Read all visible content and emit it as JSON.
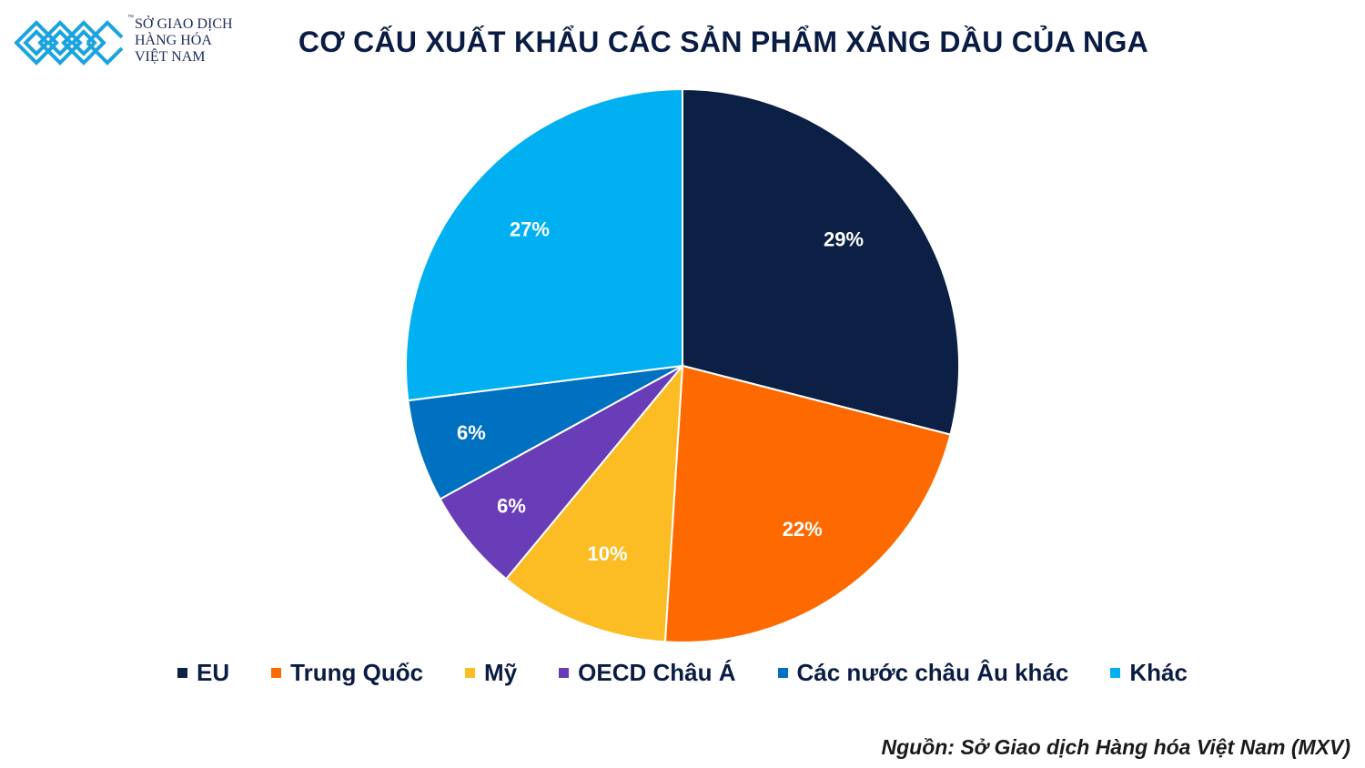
{
  "logo": {
    "lines": [
      "SỞ GIAO DỊCH",
      "HÀNG HÓA",
      "VIỆT NAM"
    ],
    "tm": "™",
    "color": "#1ba3e0"
  },
  "chart_data": {
    "type": "pie",
    "title": "CƠ CẤU XUẤT KHẨU CÁC SẢN PHẨM XĂNG DẦU CỦA NGA",
    "categories": [
      "EU",
      "Trung Quốc",
      "Mỹ",
      "OECD Châu Á",
      "Các nước châu Âu khác",
      "Khác"
    ],
    "values": [
      29,
      22,
      10,
      6,
      6,
      27
    ],
    "data_labels": [
      "29%",
      "22%",
      "10%",
      "6%",
      "6%",
      "27%"
    ],
    "colors": [
      "#0c1f45",
      "#ff6a00",
      "#fbbc24",
      "#6a3db8",
      "#0070c0",
      "#00b0f0"
    ],
    "legend_position": "bottom",
    "start_angle_deg": 0,
    "direction": "clockwise"
  },
  "source": "Nguồn: Sở Giao dịch Hàng hóa Việt Nam (MXV)"
}
